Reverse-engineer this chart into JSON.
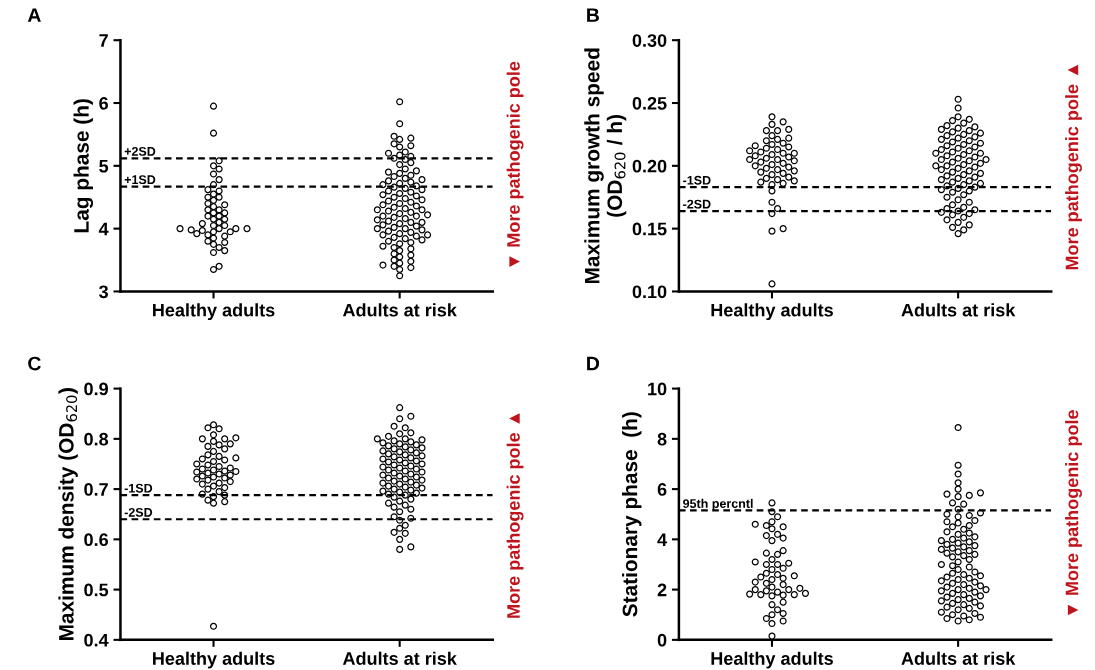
{
  "chart_data": [
    {
      "type": "scatter",
      "title": "A",
      "ylabel": "Lag phase (h)",
      "categories": [
        "Healthy adults",
        "Adults at risk"
      ],
      "ylim": [
        3,
        7
      ],
      "yticks": [
        3,
        4,
        5,
        6,
        7
      ],
      "marker": "circle",
      "ref_lines": [
        {
          "axis": "y",
          "value": 5.12,
          "label": "+2SD",
          "line_style": "dashed",
          "color": "#000000"
        },
        {
          "axis": "y",
          "value": 4.67,
          "label": "+1SD",
          "line_style": "dashed",
          "color": "#000000"
        }
      ],
      "annotations": [
        "▼ More pathogenic pole"
      ],
      "series": [
        {
          "type": "scatter",
          "color": "#000000",
          "x": [
            "Healthy adults",
            "Healthy adults",
            "Healthy adults",
            "Healthy adults",
            "Healthy adults",
            "Healthy adults",
            "Healthy adults",
            "Healthy adults",
            "Healthy adults",
            "Healthy adults",
            "Healthy adults",
            "Healthy adults",
            "Healthy adults",
            "Healthy adults",
            "Healthy adults",
            "Healthy adults",
            "Healthy adults",
            "Healthy adults",
            "Healthy adults",
            "Healthy adults",
            "Healthy adults",
            "Healthy adults",
            "Healthy adults",
            "Healthy adults",
            "Healthy adults",
            "Healthy adults",
            "Healthy adults",
            "Healthy adults",
            "Healthy adults",
            "Healthy adults",
            "Healthy adults",
            "Healthy adults",
            "Healthy adults",
            "Healthy adults",
            "Healthy adults",
            "Healthy adults",
            "Healthy adults",
            "Healthy adults",
            "Healthy adults",
            "Healthy adults",
            "Healthy adults",
            "Healthy adults",
            "Healthy adults",
            "Healthy adults",
            "Healthy adults",
            "Healthy adults",
            "Healthy adults",
            "Healthy adults",
            "Healthy adults"
          ],
          "values": [
            5.95,
            5.52,
            5.08,
            5.0,
            4.95,
            4.87,
            4.78,
            4.7,
            4.62,
            4.6,
            4.55,
            4.5,
            4.5,
            4.45,
            4.4,
            4.38,
            4.35,
            4.3,
            4.3,
            4.25,
            4.25,
            4.2,
            4.2,
            4.15,
            4.15,
            4.1,
            4.08,
            4.05,
            4.05,
            4.0,
            4.0,
            4.0,
            4.0,
            3.98,
            3.97,
            3.95,
            3.95,
            3.92,
            3.9,
            3.88,
            3.85,
            3.8,
            3.78,
            3.75,
            3.7,
            3.65,
            3.62,
            3.4,
            3.35
          ]
        },
        {
          "type": "scatter",
          "color": "#000000",
          "x": [
            "Adults at risk",
            "Adults at risk",
            "Adults at risk",
            "Adults at risk",
            "Adults at risk",
            "Adults at risk",
            "Adults at risk",
            "Adults at risk",
            "Adults at risk",
            "Adults at risk",
            "Adults at risk",
            "Adults at risk",
            "Adults at risk",
            "Adults at risk",
            "Adults at risk",
            "Adults at risk",
            "Adults at risk",
            "Adults at risk",
            "Adults at risk",
            "Adults at risk",
            "Adults at risk",
            "Adults at risk",
            "Adults at risk",
            "Adults at risk",
            "Adults at risk",
            "Adults at risk",
            "Adults at risk",
            "Adults at risk",
            "Adults at risk",
            "Adults at risk",
            "Adults at risk",
            "Adults at risk",
            "Adults at risk",
            "Adults at risk",
            "Adults at risk",
            "Adults at risk",
            "Adults at risk",
            "Adults at risk",
            "Adults at risk",
            "Adults at risk",
            "Adults at risk",
            "Adults at risk",
            "Adults at risk",
            "Adults at risk",
            "Adults at risk",
            "Adults at risk",
            "Adults at risk",
            "Adults at risk",
            "Adults at risk",
            "Adults at risk",
            "Adults at risk",
            "Adults at risk",
            "Adults at risk",
            "Adults at risk",
            "Adults at risk",
            "Adults at risk",
            "Adults at risk",
            "Adults at risk",
            "Adults at risk",
            "Adults at risk",
            "Adults at risk",
            "Adults at risk",
            "Adults at risk",
            "Adults at risk",
            "Adults at risk",
            "Adults at risk",
            "Adults at risk",
            "Adults at risk",
            "Adults at risk",
            "Adults at risk",
            "Adults at risk",
            "Adults at risk",
            "Adults at risk",
            "Adults at risk",
            "Adults at risk",
            "Adults at risk",
            "Adults at risk",
            "Adults at risk",
            "Adults at risk",
            "Adults at risk",
            "Adults at risk",
            "Adults at risk",
            "Adults at risk",
            "Adults at risk",
            "Adults at risk",
            "Adults at risk",
            "Adults at risk",
            "Adults at risk",
            "Adults at risk",
            "Adults at risk",
            "Adults at risk",
            "Adults at risk",
            "Adults at risk",
            "Adults at risk",
            "Adults at risk"
          ],
          "values": [
            6.02,
            5.67,
            5.47,
            5.44,
            5.42,
            5.35,
            5.32,
            5.3,
            5.22,
            5.2,
            5.17,
            5.15,
            5.12,
            5.1,
            5.05,
            5.02,
            4.95,
            4.92,
            4.9,
            4.88,
            4.85,
            4.83,
            4.8,
            4.78,
            4.76,
            4.74,
            4.72,
            4.7,
            4.68,
            4.66,
            4.64,
            4.62,
            4.6,
            4.58,
            4.56,
            4.54,
            4.52,
            4.5,
            4.48,
            4.46,
            4.44,
            4.42,
            4.4,
            4.38,
            4.36,
            4.34,
            4.32,
            4.3,
            4.3,
            4.28,
            4.26,
            4.24,
            4.22,
            4.2,
            4.2,
            4.18,
            4.16,
            4.14,
            4.12,
            4.1,
            4.1,
            4.08,
            4.06,
            4.04,
            4.02,
            4.0,
            4.0,
            3.98,
            3.96,
            3.94,
            3.92,
            3.9,
            3.9,
            3.88,
            3.86,
            3.84,
            3.82,
            3.8,
            3.78,
            3.76,
            3.72,
            3.7,
            3.68,
            3.65,
            3.6,
            3.58,
            3.55,
            3.5,
            3.48,
            3.45,
            3.42,
            3.4,
            3.38,
            3.35,
            3.25
          ]
        }
      ]
    },
    {
      "type": "scatter",
      "title": "B",
      "ylabel": "Maximum growth speed\n(OD$_{620}$ / h)",
      "categories": [
        "Healthy adults",
        "Adults at risk"
      ],
      "ylim": [
        0.1,
        0.3
      ],
      "yticks": [
        {
          "value": 0.1,
          "label": "0.10"
        },
        {
          "value": 0.15,
          "label": "0.15"
        },
        {
          "value": 0.2,
          "label": "0.20"
        },
        {
          "value": 0.25,
          "label": "0.25"
        },
        {
          "value": 0.3,
          "label": "0.30"
        }
      ],
      "marker": "circle",
      "ref_lines": [
        {
          "axis": "y",
          "value": 0.183,
          "label": "-1SD",
          "line_style": "dashed",
          "color": "#000000"
        },
        {
          "axis": "y",
          "value": 0.164,
          "label": "-2SD",
          "line_style": "dashed",
          "color": "#000000"
        }
      ],
      "annotations": [
        "More pathogenic pole ▲"
      ],
      "series": [
        {
          "type": "scatter",
          "color": "#000000",
          "x": [
            "Healthy adults",
            "Healthy adults",
            "Healthy adults",
            "Healthy adults",
            "Healthy adults",
            "Healthy adults",
            "Healthy adults",
            "Healthy adults",
            "Healthy adults",
            "Healthy adults",
            "Healthy adults",
            "Healthy adults",
            "Healthy adults",
            "Healthy adults",
            "Healthy adults",
            "Healthy adults",
            "Healthy adults",
            "Healthy adults",
            "Healthy adults",
            "Healthy adults",
            "Healthy adults",
            "Healthy adults",
            "Healthy adults",
            "Healthy adults",
            "Healthy adults",
            "Healthy adults",
            "Healthy adults",
            "Healthy adults",
            "Healthy adults",
            "Healthy adults",
            "Healthy adults",
            "Healthy adults",
            "Healthy adults",
            "Healthy adults",
            "Healthy adults",
            "Healthy adults",
            "Healthy adults",
            "Healthy adults",
            "Healthy adults",
            "Healthy adults",
            "Healthy adults",
            "Healthy adults",
            "Healthy adults",
            "Healthy adults",
            "Healthy adults",
            "Healthy adults",
            "Healthy adults",
            "Healthy adults",
            "Healthy adults",
            "Healthy adults",
            "Healthy adults",
            "Healthy adults"
          ],
          "values": [
            0.239,
            0.235,
            0.233,
            0.229,
            0.228,
            0.228,
            0.224,
            0.222,
            0.221,
            0.22,
            0.218,
            0.217,
            0.216,
            0.215,
            0.214,
            0.213,
            0.212,
            0.211,
            0.21,
            0.21,
            0.209,
            0.208,
            0.207,
            0.206,
            0.205,
            0.205,
            0.204,
            0.203,
            0.202,
            0.201,
            0.2,
            0.199,
            0.198,
            0.197,
            0.196,
            0.195,
            0.194,
            0.193,
            0.191,
            0.19,
            0.189,
            0.188,
            0.187,
            0.186,
            0.185,
            0.18,
            0.171,
            0.166,
            0.162,
            0.15,
            0.148,
            0.106
          ]
        },
        {
          "type": "scatter",
          "color": "#000000",
          "x": [
            "Adults at risk",
            "Adults at risk",
            "Adults at risk",
            "Adults at risk",
            "Adults at risk",
            "Adults at risk",
            "Adults at risk",
            "Adults at risk",
            "Adults at risk",
            "Adults at risk",
            "Adults at risk",
            "Adults at risk",
            "Adults at risk",
            "Adults at risk",
            "Adults at risk",
            "Adults at risk",
            "Adults at risk",
            "Adults at risk",
            "Adults at risk",
            "Adults at risk",
            "Adults at risk",
            "Adults at risk",
            "Adults at risk",
            "Adults at risk",
            "Adults at risk",
            "Adults at risk",
            "Adults at risk",
            "Adults at risk",
            "Adults at risk",
            "Adults at risk",
            "Adults at risk",
            "Adults at risk",
            "Adults at risk",
            "Adults at risk",
            "Adults at risk",
            "Adults at risk",
            "Adults at risk",
            "Adults at risk",
            "Adults at risk",
            "Adults at risk",
            "Adults at risk",
            "Adults at risk",
            "Adults at risk",
            "Adults at risk",
            "Adults at risk",
            "Adults at risk",
            "Adults at risk",
            "Adults at risk",
            "Adults at risk",
            "Adults at risk",
            "Adults at risk",
            "Adults at risk",
            "Adults at risk",
            "Adults at risk",
            "Adults at risk",
            "Adults at risk",
            "Adults at risk",
            "Adults at risk",
            "Adults at risk",
            "Adults at risk",
            "Adults at risk",
            "Adults at risk",
            "Adults at risk",
            "Adults at risk",
            "Adults at risk",
            "Adults at risk",
            "Adults at risk",
            "Adults at risk",
            "Adults at risk",
            "Adults at risk",
            "Adults at risk",
            "Adults at risk",
            "Adults at risk",
            "Adults at risk",
            "Adults at risk",
            "Adults at risk",
            "Adults at risk",
            "Adults at risk",
            "Adults at risk",
            "Adults at risk",
            "Adults at risk",
            "Adults at risk"
          ],
          "values": [
            0.253,
            0.246,
            0.239,
            0.237,
            0.236,
            0.234,
            0.232,
            0.231,
            0.23,
            0.229,
            0.228,
            0.227,
            0.226,
            0.225,
            0.224,
            0.223,
            0.222,
            0.221,
            0.22,
            0.219,
            0.218,
            0.217,
            0.216,
            0.215,
            0.214,
            0.213,
            0.212,
            0.211,
            0.21,
            0.21,
            0.209,
            0.208,
            0.207,
            0.206,
            0.205,
            0.205,
            0.204,
            0.203,
            0.202,
            0.201,
            0.2,
            0.2,
            0.199,
            0.198,
            0.197,
            0.196,
            0.195,
            0.194,
            0.193,
            0.192,
            0.191,
            0.19,
            0.189,
            0.188,
            0.187,
            0.186,
            0.185,
            0.184,
            0.183,
            0.182,
            0.181,
            0.18,
            0.179,
            0.177,
            0.175,
            0.173,
            0.171,
            0.169,
            0.167,
            0.166,
            0.165,
            0.164,
            0.163,
            0.162,
            0.161,
            0.159,
            0.157,
            0.155,
            0.153,
            0.151,
            0.149,
            0.146
          ]
        }
      ]
    },
    {
      "type": "scatter",
      "title": "C",
      "ylabel": "Maximum density (OD$_{620}$)",
      "categories": [
        "Healthy adults",
        "Adults at risk"
      ],
      "ylim": [
        0.4,
        0.9
      ],
      "yticks": [
        0.4,
        0.5,
        0.6,
        0.7,
        0.8,
        0.9
      ],
      "marker": "circle",
      "ref_lines": [
        {
          "axis": "y",
          "value": 0.688,
          "label": "-1SD",
          "line_style": "dashed",
          "color": "#000000"
        },
        {
          "axis": "y",
          "value": 0.64,
          "label": "-2SD",
          "line_style": "dashed",
          "color": "#000000"
        }
      ],
      "annotations": [
        "More pathogenic pole ▲"
      ],
      "series": [
        {
          "type": "scatter",
          "color": "#000000",
          "x": [
            "Healthy adults",
            "Healthy adults",
            "Healthy adults",
            "Healthy adults",
            "Healthy adults",
            "Healthy adults",
            "Healthy adults",
            "Healthy adults",
            "Healthy adults",
            "Healthy adults",
            "Healthy adults",
            "Healthy adults",
            "Healthy adults",
            "Healthy adults",
            "Healthy adults",
            "Healthy adults",
            "Healthy adults",
            "Healthy adults",
            "Healthy adults",
            "Healthy adults",
            "Healthy adults",
            "Healthy adults",
            "Healthy adults",
            "Healthy adults",
            "Healthy adults",
            "Healthy adults",
            "Healthy adults",
            "Healthy adults",
            "Healthy adults",
            "Healthy adults",
            "Healthy adults",
            "Healthy adults",
            "Healthy adults",
            "Healthy adults",
            "Healthy adults",
            "Healthy adults",
            "Healthy adults",
            "Healthy adults",
            "Healthy adults",
            "Healthy adults",
            "Healthy adults",
            "Healthy adults",
            "Healthy adults",
            "Healthy adults",
            "Healthy adults",
            "Healthy adults",
            "Healthy adults",
            "Healthy adults",
            "Healthy adults",
            "Healthy adults"
          ],
          "values": [
            0.828,
            0.822,
            0.82,
            0.808,
            0.802,
            0.8,
            0.8,
            0.795,
            0.79,
            0.788,
            0.785,
            0.78,
            0.775,
            0.768,
            0.765,
            0.762,
            0.76,
            0.758,
            0.755,
            0.75,
            0.748,
            0.745,
            0.742,
            0.74,
            0.738,
            0.736,
            0.735,
            0.734,
            0.732,
            0.73,
            0.728,
            0.726,
            0.724,
            0.722,
            0.72,
            0.718,
            0.715,
            0.712,
            0.71,
            0.706,
            0.703,
            0.7,
            0.695,
            0.69,
            0.688,
            0.685,
            0.678,
            0.675,
            0.672,
            0.427
          ]
        },
        {
          "type": "scatter",
          "color": "#000000",
          "x": [
            "Adults at risk",
            "Adults at risk",
            "Adults at risk",
            "Adults at risk",
            "Adults at risk",
            "Adults at risk",
            "Adults at risk",
            "Adults at risk",
            "Adults at risk",
            "Adults at risk",
            "Adults at risk",
            "Adults at risk",
            "Adults at risk",
            "Adults at risk",
            "Adults at risk",
            "Adults at risk",
            "Adults at risk",
            "Adults at risk",
            "Adults at risk",
            "Adults at risk",
            "Adults at risk",
            "Adults at risk",
            "Adults at risk",
            "Adults at risk",
            "Adults at risk",
            "Adults at risk",
            "Adults at risk",
            "Adults at risk",
            "Adults at risk",
            "Adults at risk",
            "Adults at risk",
            "Adults at risk",
            "Adults at risk",
            "Adults at risk",
            "Adults at risk",
            "Adults at risk",
            "Adults at risk",
            "Adults at risk",
            "Adults at risk",
            "Adults at risk",
            "Adults at risk",
            "Adults at risk",
            "Adults at risk",
            "Adults at risk",
            "Adults at risk",
            "Adults at risk",
            "Adults at risk",
            "Adults at risk",
            "Adults at risk",
            "Adults at risk",
            "Adults at risk",
            "Adults at risk",
            "Adults at risk",
            "Adults at risk",
            "Adults at risk",
            "Adults at risk",
            "Adults at risk",
            "Adults at risk",
            "Adults at risk",
            "Adults at risk",
            "Adults at risk",
            "Adults at risk",
            "Adults at risk",
            "Adults at risk",
            "Adults at risk",
            "Adults at risk",
            "Adults at risk",
            "Adults at risk",
            "Adults at risk",
            "Adults at risk",
            "Adults at risk",
            "Adults at risk",
            "Adults at risk",
            "Adults at risk",
            "Adults at risk",
            "Adults at risk",
            "Adults at risk",
            "Adults at risk",
            "Adults at risk",
            "Adults at risk",
            "Adults at risk",
            "Adults at risk",
            "Adults at risk",
            "Adults at risk"
          ],
          "values": [
            0.862,
            0.845,
            0.84,
            0.825,
            0.822,
            0.812,
            0.81,
            0.805,
            0.8,
            0.8,
            0.798,
            0.796,
            0.794,
            0.792,
            0.79,
            0.788,
            0.786,
            0.784,
            0.782,
            0.78,
            0.778,
            0.776,
            0.774,
            0.772,
            0.77,
            0.768,
            0.766,
            0.764,
            0.762,
            0.76,
            0.758,
            0.756,
            0.754,
            0.752,
            0.75,
            0.748,
            0.746,
            0.744,
            0.742,
            0.74,
            0.738,
            0.736,
            0.734,
            0.732,
            0.73,
            0.728,
            0.726,
            0.724,
            0.722,
            0.72,
            0.718,
            0.716,
            0.714,
            0.712,
            0.71,
            0.708,
            0.706,
            0.704,
            0.702,
            0.7,
            0.698,
            0.696,
            0.694,
            0.692,
            0.69,
            0.688,
            0.684,
            0.68,
            0.676,
            0.672,
            0.668,
            0.664,
            0.66,
            0.655,
            0.645,
            0.642,
            0.638,
            0.628,
            0.622,
            0.614,
            0.612,
            0.6,
            0.585,
            0.58
          ]
        }
      ]
    },
    {
      "type": "scatter",
      "title": "D",
      "ylabel": "Stationary phase  (h)",
      "categories": [
        "Healthy adults",
        "Adults at risk"
      ],
      "ylim": [
        0,
        10
      ],
      "yticks": [
        0,
        2,
        4,
        6,
        8,
        10
      ],
      "marker": "circle",
      "ref_lines": [
        {
          "axis": "y",
          "value": 5.15,
          "label": "95th percntl",
          "line_style": "dashed",
          "color": "#000000"
        }
      ],
      "annotations": [
        "▼ More pathogenic pole"
      ],
      "series": [
        {
          "type": "scatter",
          "color": "#000000",
          "x": [
            "Healthy adults",
            "Healthy adults",
            "Healthy adults",
            "Healthy adults",
            "Healthy adults",
            "Healthy adults",
            "Healthy adults",
            "Healthy adults",
            "Healthy adults",
            "Healthy adults",
            "Healthy adults",
            "Healthy adults",
            "Healthy adults",
            "Healthy adults",
            "Healthy adults",
            "Healthy adults",
            "Healthy adults",
            "Healthy adults",
            "Healthy adults",
            "Healthy adults",
            "Healthy adults",
            "Healthy adults",
            "Healthy adults",
            "Healthy adults",
            "Healthy adults",
            "Healthy adults",
            "Healthy adults",
            "Healthy adults",
            "Healthy adults",
            "Healthy adults",
            "Healthy adults",
            "Healthy adults",
            "Healthy adults",
            "Healthy adults",
            "Healthy adults",
            "Healthy adults",
            "Healthy adults",
            "Healthy adults",
            "Healthy adults",
            "Healthy adults",
            "Healthy adults",
            "Healthy adults",
            "Healthy adults",
            "Healthy adults",
            "Healthy adults",
            "Healthy adults",
            "Healthy adults",
            "Healthy adults",
            "Healthy adults",
            "Healthy adults",
            "Healthy adults",
            "Healthy adults"
          ],
          "values": [
            5.45,
            5.1,
            4.9,
            4.7,
            4.6,
            4.55,
            4.5,
            4.42,
            4.2,
            4.15,
            4.05,
            3.95,
            3.55,
            3.45,
            3.4,
            3.2,
            3.1,
            3.05,
            3.0,
            3.0,
            2.85,
            2.8,
            2.65,
            2.6,
            2.55,
            2.5,
            2.45,
            2.4,
            2.3,
            2.25,
            2.2,
            2.1,
            2.05,
            2.0,
            2.0,
            1.95,
            1.9,
            1.85,
            1.82,
            1.8,
            1.8,
            1.78,
            1.75,
            1.5,
            1.4,
            1.2,
            1.05,
            1.0,
            0.85,
            0.75,
            0.65,
            0.15
          ]
        },
        {
          "type": "scatter",
          "color": "#000000",
          "x": [
            "Adults at risk",
            "Adults at risk",
            "Adults at risk",
            "Adults at risk",
            "Adults at risk",
            "Adults at risk",
            "Adults at risk",
            "Adults at risk",
            "Adults at risk",
            "Adults at risk",
            "Adults at risk",
            "Adults at risk",
            "Adults at risk",
            "Adults at risk",
            "Adults at risk",
            "Adults at risk",
            "Adults at risk",
            "Adults at risk",
            "Adults at risk",
            "Adults at risk",
            "Adults at risk",
            "Adults at risk",
            "Adults at risk",
            "Adults at risk",
            "Adults at risk",
            "Adults at risk",
            "Adults at risk",
            "Adults at risk",
            "Adults at risk",
            "Adults at risk",
            "Adults at risk",
            "Adults at risk",
            "Adults at risk",
            "Adults at risk",
            "Adults at risk",
            "Adults at risk",
            "Adults at risk",
            "Adults at risk",
            "Adults at risk",
            "Adults at risk",
            "Adults at risk",
            "Adults at risk",
            "Adults at risk",
            "Adults at risk",
            "Adults at risk",
            "Adults at risk",
            "Adults at risk",
            "Adults at risk",
            "Adults at risk",
            "Adults at risk",
            "Adults at risk",
            "Adults at risk",
            "Adults at risk",
            "Adults at risk",
            "Adults at risk",
            "Adults at risk",
            "Adults at risk",
            "Adults at risk",
            "Adults at risk",
            "Adults at risk",
            "Adults at risk",
            "Adults at risk",
            "Adults at risk",
            "Adults at risk",
            "Adults at risk",
            "Adults at risk",
            "Adults at risk",
            "Adults at risk",
            "Adults at risk",
            "Adults at risk",
            "Adults at risk",
            "Adults at risk",
            "Adults at risk",
            "Adults at risk",
            "Adults at risk",
            "Adults at risk",
            "Adults at risk",
            "Adults at risk",
            "Adults at risk",
            "Adults at risk",
            "Adults at risk",
            "Adults at risk",
            "Adults at risk",
            "Adults at risk",
            "Adults at risk",
            "Adults at risk",
            "Adults at risk",
            "Adults at risk"
          ],
          "values": [
            8.45,
            6.95,
            6.6,
            6.25,
            6.0,
            5.85,
            5.8,
            5.75,
            5.7,
            5.45,
            5.4,
            5.2,
            5.05,
            5.0,
            4.95,
            4.9,
            4.75,
            4.7,
            4.65,
            4.55,
            4.5,
            4.4,
            4.3,
            4.25,
            4.2,
            4.1,
            4.05,
            4.0,
            3.95,
            3.9,
            3.85,
            3.8,
            3.75,
            3.7,
            3.65,
            3.6,
            3.55,
            3.5,
            3.45,
            3.4,
            3.35,
            3.3,
            3.2,
            3.1,
            3.0,
            2.95,
            2.9,
            2.8,
            2.7,
            2.65,
            2.6,
            2.55,
            2.5,
            2.45,
            2.4,
            2.35,
            2.3,
            2.25,
            2.2,
            2.15,
            2.1,
            2.05,
            2.0,
            2.0,
            1.95,
            1.9,
            1.85,
            1.8,
            1.75,
            1.7,
            1.65,
            1.6,
            1.55,
            1.5,
            1.45,
            1.4,
            1.35,
            1.3,
            1.25,
            1.2,
            1.1,
            1.05,
            1.0,
            0.95,
            0.9,
            0.85,
            0.8,
            0.75
          ]
        }
      ]
    }
  ]
}
